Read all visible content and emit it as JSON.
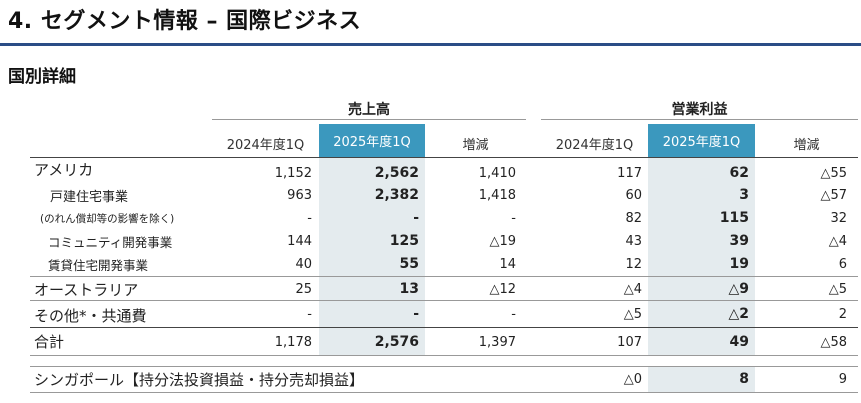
{
  "title": "4. セグメント情報 – 国際ビジネス",
  "subtitle": "国別詳細",
  "groups": {
    "sales": "売上高",
    "profit": "営業利益"
  },
  "columns": [
    "2024年度1Q",
    "2025年度1Q",
    "増減"
  ],
  "rows": [
    {
      "label": "アメリカ",
      "sales": [
        "1,152",
        "2,562",
        "1,410"
      ],
      "profit": [
        "117",
        "62",
        "△55"
      ]
    },
    {
      "label": "戸建住宅事業",
      "sales": [
        "963",
        "2,382",
        "1,418"
      ],
      "profit": [
        "60",
        "3",
        "△57"
      ]
    },
    {
      "label": "(のれん償却等の影響を除く)",
      "sales": [
        "-",
        "-",
        "-"
      ],
      "profit": [
        "82",
        "115",
        "32"
      ]
    },
    {
      "label": "コミュニティ開発事業",
      "sales": [
        "144",
        "125",
        "△19"
      ],
      "profit": [
        "43",
        "39",
        "△4"
      ]
    },
    {
      "label": "賃貸住宅開発事業",
      "sales": [
        "40",
        "55",
        "14"
      ],
      "profit": [
        "12",
        "19",
        "6"
      ]
    },
    {
      "label": "オーストラリア",
      "sales": [
        "25",
        "13",
        "△12"
      ],
      "profit": [
        "△4",
        "△9",
        "△5"
      ]
    },
    {
      "label": "その他*・共通費",
      "sales": [
        "-",
        "-",
        "-"
      ],
      "profit": [
        "△5",
        "△2",
        "2"
      ]
    },
    {
      "label": "合計",
      "sales": [
        "1,178",
        "2,576",
        "1,397"
      ],
      "profit": [
        "107",
        "49",
        "△58"
      ]
    }
  ],
  "singapore": {
    "label": "シンガポール【持分法投資損益・持分売却損益】",
    "profit": [
      "△0",
      "8",
      "9"
    ]
  }
}
